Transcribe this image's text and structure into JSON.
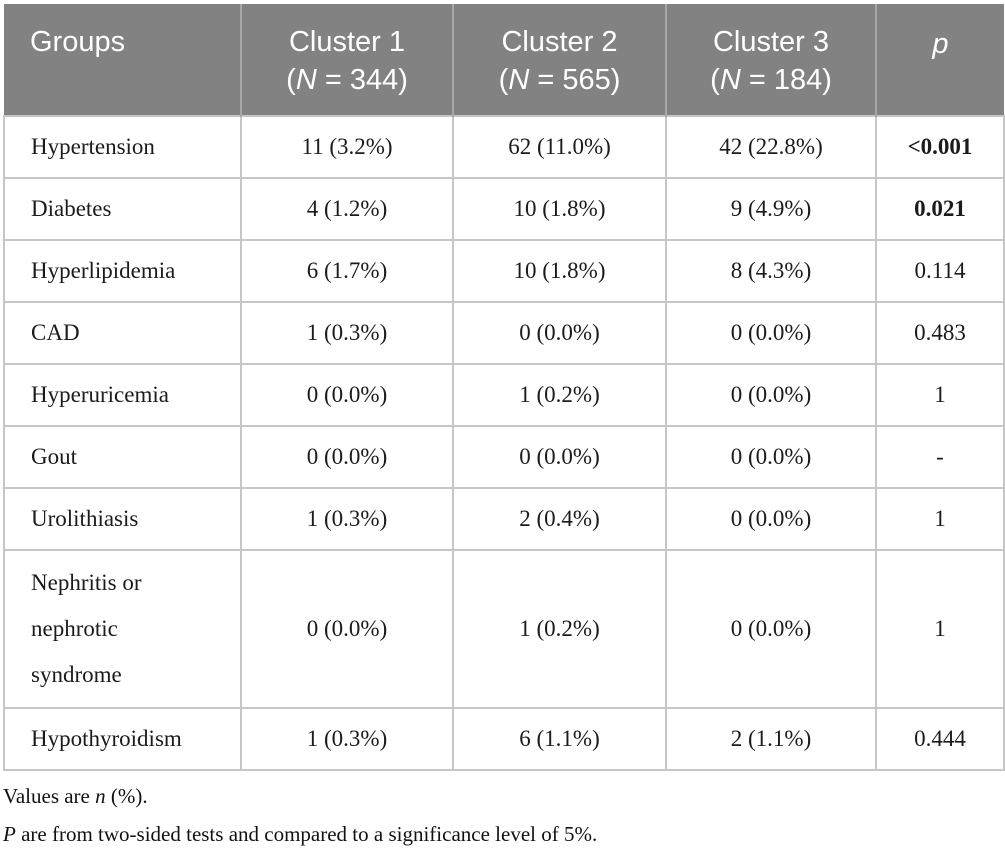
{
  "table": {
    "header": {
      "groups_label": "Groups",
      "clusters": [
        {
          "title": "Cluster 1",
          "n_open": "(",
          "n_symbol": "N",
          "n_rest": " = 344)"
        },
        {
          "title": "Cluster 2",
          "n_open": "(",
          "n_symbol": "N",
          "n_rest": " = 565)"
        },
        {
          "title": "Cluster 3",
          "n_open": "(",
          "n_symbol": "N",
          "n_rest": " = 184)"
        }
      ],
      "p_label": "p"
    },
    "rows": [
      {
        "group": "Hypertension",
        "cluster1": "11 (3.2%)",
        "cluster2": "62 (11.0%)",
        "cluster3": "42 (22.8%)",
        "p": "<0.001",
        "p_bold": true
      },
      {
        "group": "Diabetes",
        "cluster1": "4 (1.2%)",
        "cluster2": "10 (1.8%)",
        "cluster3": "9 (4.9%)",
        "p": "0.021",
        "p_bold": true
      },
      {
        "group": "Hyperlipidemia",
        "cluster1": "6 (1.7%)",
        "cluster2": "10 (1.8%)",
        "cluster3": "8 (4.3%)",
        "p": "0.114",
        "p_bold": false
      },
      {
        "group": "CAD",
        "cluster1": "1 (0.3%)",
        "cluster2": "0 (0.0%)",
        "cluster3": "0 (0.0%)",
        "p": "0.483",
        "p_bold": false
      },
      {
        "group": "Hyperuricemia",
        "cluster1": "0 (0.0%)",
        "cluster2": "1 (0.2%)",
        "cluster3": "0 (0.0%)",
        "p": "1",
        "p_bold": false
      },
      {
        "group": "Gout",
        "cluster1": "0 (0.0%)",
        "cluster2": "0 (0.0%)",
        "cluster3": "0 (0.0%)",
        "p": "-",
        "p_bold": false
      },
      {
        "group": "Urolithiasis",
        "cluster1": "1 (0.3%)",
        "cluster2": "2 (0.4%)",
        "cluster3": "0 (0.0%)",
        "p": "1",
        "p_bold": false
      },
      {
        "group": "Nephritis or nephrotic syndrome",
        "cluster1": "0 (0.0%)",
        "cluster2": "1 (0.2%)",
        "cluster3": "0 (0.0%)",
        "p": "1",
        "p_bold": false
      },
      {
        "group": "Hypothyroidism",
        "cluster1": "1 (0.3%)",
        "cluster2": "6 (1.1%)",
        "cluster3": "2 (1.1%)",
        "p": "0.444",
        "p_bold": false
      }
    ],
    "footnotes": {
      "line1_prefix": "Values are ",
      "line1_italic": "n",
      "line1_suffix": " (%).",
      "line2_italic": "P",
      "line2_rest": " are from two-sided tests and compared to a significance level of 5%."
    }
  },
  "colors": {
    "header_bg": "#828282",
    "header_text": "#ffffff",
    "header_divider": "#a8a8a8",
    "body_border": "#c6c6c6",
    "body_text": "#1b1b1b"
  }
}
